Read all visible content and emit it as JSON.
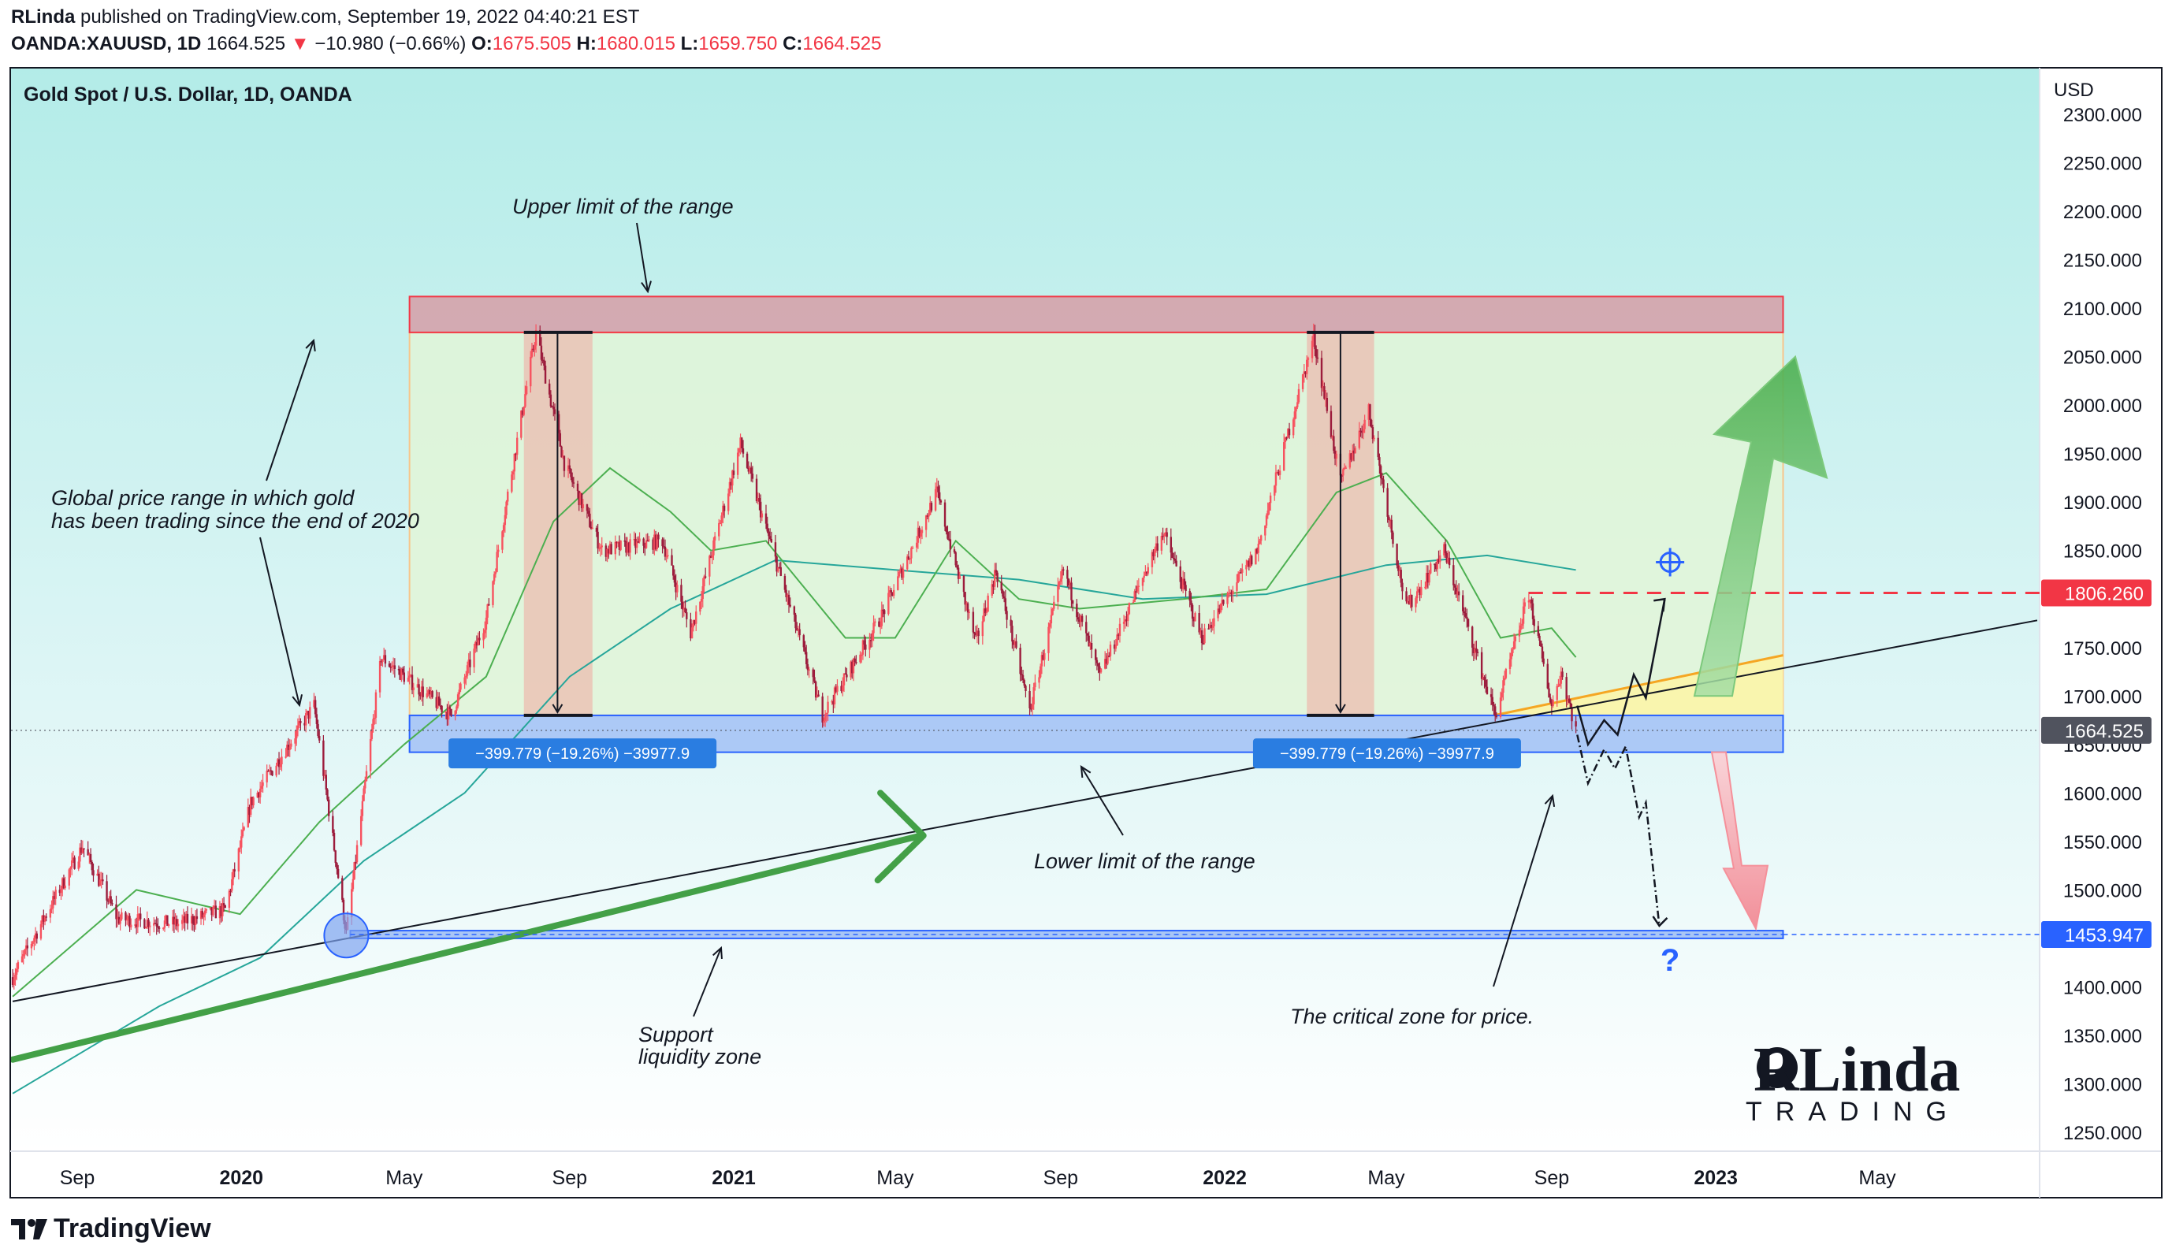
{
  "header": {
    "publisher": "RLinda",
    "published_text": "published on TradingView.com, September 19, 2022 04:40:21 EST",
    "symbol": "OANDA:XAUUSD, 1D",
    "last": "1664.525",
    "change_arrow": "▼",
    "change": "−10.980 (−0.66%)",
    "o_label": "O:",
    "o_value": "1675.505",
    "h_label": "H:",
    "h_value": "1680.015",
    "l_label": "L:",
    "l_value": "1659.750",
    "c_label": "C:",
    "c_value": "1664.525"
  },
  "chart_data": {
    "type": "candlestick",
    "title": "Gold Spot / U.S. Dollar, 1D, OANDA",
    "currency": "USD",
    "ylim": [
      1220,
      2310
    ],
    "y_ticks": [
      "2300.000",
      "2250.000",
      "2200.000",
      "2150.000",
      "2100.000",
      "2050.000",
      "2000.000",
      "1950.000",
      "1900.000",
      "1850.000",
      "1800.000",
      "1750.000",
      "1700.000",
      "1650.000",
      "1600.000",
      "1550.000",
      "1500.000",
      "1450.000",
      "1400.000",
      "1350.000",
      "1300.000",
      "1250.000"
    ],
    "x_ticks": [
      {
        "label": "Sep",
        "bold": false,
        "date": "2019-09"
      },
      {
        "label": "2020",
        "bold": true,
        "date": "2020-01"
      },
      {
        "label": "May",
        "bold": false,
        "date": "2020-05"
      },
      {
        "label": "Sep",
        "bold": false,
        "date": "2020-09"
      },
      {
        "label": "2021",
        "bold": true,
        "date": "2021-01"
      },
      {
        "label": "May",
        "bold": false,
        "date": "2021-05"
      },
      {
        "label": "Sep",
        "bold": false,
        "date": "2021-09"
      },
      {
        "label": "2022",
        "bold": true,
        "date": "2022-01"
      },
      {
        "label": "May",
        "bold": false,
        "date": "2022-05"
      },
      {
        "label": "Sep",
        "bold": false,
        "date": "2022-09"
      },
      {
        "label": "2023",
        "bold": true,
        "date": "2023-01"
      },
      {
        "label": "May",
        "bold": false,
        "date": "2023-05"
      }
    ],
    "price_key_points": [
      {
        "date": "2019-07-15",
        "price": 1410
      },
      {
        "date": "2019-09-05",
        "price": 1545
      },
      {
        "date": "2019-10-01",
        "price": 1470
      },
      {
        "date": "2019-11-15",
        "price": 1465
      },
      {
        "date": "2019-12-20",
        "price": 1480
      },
      {
        "date": "2020-01-08",
        "price": 1590
      },
      {
        "date": "2020-02-24",
        "price": 1690
      },
      {
        "date": "2020-03-19",
        "price": 1455
      },
      {
        "date": "2020-04-14",
        "price": 1740
      },
      {
        "date": "2020-06-05",
        "price": 1680
      },
      {
        "date": "2020-07-01",
        "price": 1780
      },
      {
        "date": "2020-08-07",
        "price": 2075
      },
      {
        "date": "2020-08-28",
        "price": 1940
      },
      {
        "date": "2020-09-25",
        "price": 1850
      },
      {
        "date": "2020-11-09",
        "price": 1860
      },
      {
        "date": "2020-11-30",
        "price": 1765
      },
      {
        "date": "2021-01-06",
        "price": 1960
      },
      {
        "date": "2021-03-08",
        "price": 1680
      },
      {
        "date": "2021-04-20",
        "price": 1780
      },
      {
        "date": "2021-06-01",
        "price": 1910
      },
      {
        "date": "2021-06-30",
        "price": 1755
      },
      {
        "date": "2021-07-15",
        "price": 1830
      },
      {
        "date": "2021-08-09",
        "price": 1685
      },
      {
        "date": "2021-09-03",
        "price": 1830
      },
      {
        "date": "2021-09-30",
        "price": 1720
      },
      {
        "date": "2021-11-16",
        "price": 1870
      },
      {
        "date": "2021-12-15",
        "price": 1760
      },
      {
        "date": "2022-01-25",
        "price": 1850
      },
      {
        "date": "2022-03-08",
        "price": 2070
      },
      {
        "date": "2022-03-28",
        "price": 1920
      },
      {
        "date": "2022-04-18",
        "price": 1995
      },
      {
        "date": "2022-05-16",
        "price": 1790
      },
      {
        "date": "2022-06-13",
        "price": 1850
      },
      {
        "date": "2022-07-21",
        "price": 1680
      },
      {
        "date": "2022-08-15",
        "price": 1805
      },
      {
        "date": "2022-09-01",
        "price": 1690
      },
      {
        "date": "2022-09-08",
        "price": 1725
      },
      {
        "date": "2022-09-19",
        "price": 1664.525
      }
    ],
    "ma_fast_key_points": [
      {
        "date": "2019-07-15",
        "price": 1390
      },
      {
        "date": "2019-10-15",
        "price": 1500
      },
      {
        "date": "2019-12-31",
        "price": 1475
      },
      {
        "date": "2020-02-28",
        "price": 1570
      },
      {
        "date": "2020-05-01",
        "price": 1650
      },
      {
        "date": "2020-07-01",
        "price": 1720
      },
      {
        "date": "2020-08-20",
        "price": 1880
      },
      {
        "date": "2020-10-01",
        "price": 1935
      },
      {
        "date": "2020-11-15",
        "price": 1890
      },
      {
        "date": "2020-12-15",
        "price": 1850
      },
      {
        "date": "2021-01-25",
        "price": 1860
      },
      {
        "date": "2021-03-25",
        "price": 1760
      },
      {
        "date": "2021-05-01",
        "price": 1760
      },
      {
        "date": "2021-06-15",
        "price": 1860
      },
      {
        "date": "2021-08-01",
        "price": 1800
      },
      {
        "date": "2021-09-15",
        "price": 1790
      },
      {
        "date": "2021-12-01",
        "price": 1800
      },
      {
        "date": "2022-02-01",
        "price": 1810
      },
      {
        "date": "2022-03-25",
        "price": 1910
      },
      {
        "date": "2022-05-01",
        "price": 1930
      },
      {
        "date": "2022-06-15",
        "price": 1860
      },
      {
        "date": "2022-07-25",
        "price": 1760
      },
      {
        "date": "2022-09-01",
        "price": 1770
      },
      {
        "date": "2022-09-19",
        "price": 1740
      }
    ],
    "ma_slow_key_points": [
      {
        "date": "2019-07-15",
        "price": 1290
      },
      {
        "date": "2019-11-01",
        "price": 1380
      },
      {
        "date": "2020-01-15",
        "price": 1430
      },
      {
        "date": "2020-04-01",
        "price": 1530
      },
      {
        "date": "2020-06-15",
        "price": 1600
      },
      {
        "date": "2020-09-01",
        "price": 1720
      },
      {
        "date": "2020-11-15",
        "price": 1790
      },
      {
        "date": "2021-02-01",
        "price": 1840
      },
      {
        "date": "2021-05-01",
        "price": 1830
      },
      {
        "date": "2021-08-01",
        "price": 1820
      },
      {
        "date": "2021-11-01",
        "price": 1800
      },
      {
        "date": "2022-02-01",
        "price": 1805
      },
      {
        "date": "2022-05-01",
        "price": 1835
      },
      {
        "date": "2022-07-15",
        "price": 1845
      },
      {
        "date": "2022-09-19",
        "price": 1830
      }
    ],
    "price_labels": [
      {
        "value": "1806.260",
        "price": 1806.26,
        "color": "#f23645"
      },
      {
        "value": "1664.525",
        "price": 1664.525,
        "color": "#50535e"
      },
      {
        "value": "1453.947",
        "price": 1453.947,
        "color": "#2962ff"
      }
    ],
    "measure_labels": [
      "−399.779 (−19.26%) −39977.9",
      "−399.779 (−19.26%) −39977.9"
    ],
    "annotations": {
      "upper": "Upper limit of the range",
      "global_1": "Global price range in which gold",
      "global_2": "has been trading since the end of 2020",
      "lower": "Lower limit of the range",
      "support_1": "Support",
      "support_2": "liquidity zone",
      "critical": "The critical zone for price.",
      "question": "?"
    },
    "colors": {
      "bull": "#f7525f",
      "bear": "#9c1c3c",
      "ma_fast": "#4caf50",
      "ma_slow": "#26a69a",
      "upper_zone": "#d4a5ae",
      "lower_zone": "#a9c6f5",
      "range_fill": "#e2f5d6",
      "target_red": "#f23645",
      "arrow_green": "#5cbf5c",
      "arrow_red": "#f5909a"
    }
  },
  "logo": {
    "line1": "RLinda",
    "line2": "TRADING"
  },
  "footer": {
    "brand": "TradingView"
  }
}
